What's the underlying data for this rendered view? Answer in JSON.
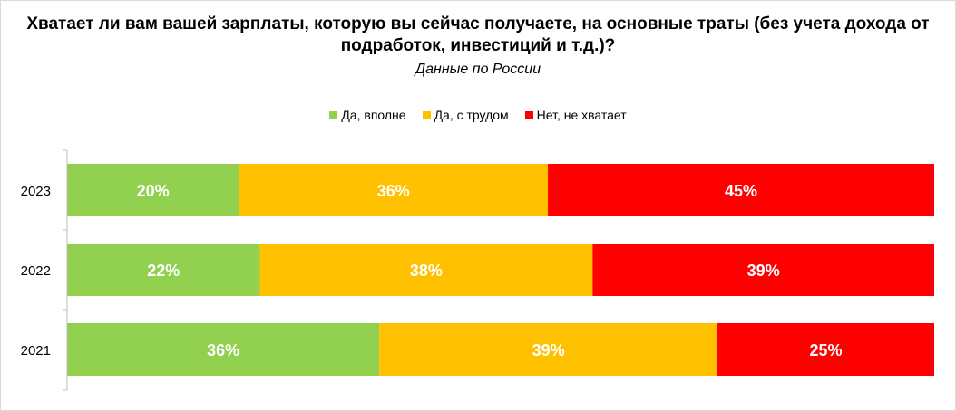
{
  "chart_data": {
    "type": "bar",
    "orientation": "horizontal",
    "stacked": true,
    "title": "Хватает ли вам вашей зарплаты, которую вы сейчас получаете, на основные траты (без учета дохода от подработок, инвестиций и т.д.)?",
    "subtitle": "Данные по России",
    "categories": [
      "2023",
      "2022",
      "2021"
    ],
    "series": [
      {
        "name": "Да, вполне",
        "color": "#92d050",
        "values": [
          20,
          22,
          36
        ],
        "labels": [
          "20%",
          "22%",
          "36%"
        ]
      },
      {
        "name": "Да, с трудом",
        "color": "#ffc000",
        "values": [
          36,
          38,
          39
        ],
        "labels": [
          "36%",
          "38%",
          "39%"
        ]
      },
      {
        "name": "Нет, не хватает",
        "color": "#ff0000",
        "values": [
          45,
          39,
          25
        ],
        "labels": [
          "45%",
          "39%",
          "25%"
        ]
      }
    ],
    "legend_position": "top",
    "grid": false
  }
}
